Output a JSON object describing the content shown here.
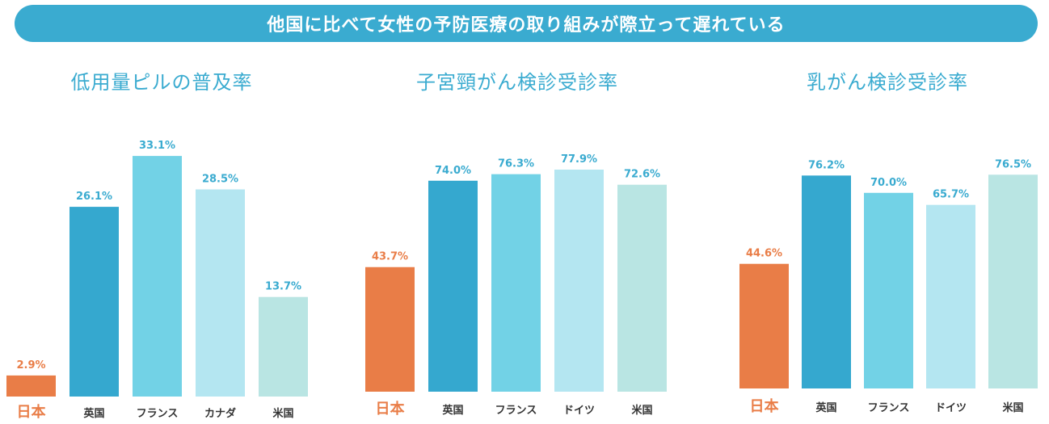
{
  "banner": {
    "title": "他国に比べて女性の予防医療の取り組みが際立って遅れている"
  },
  "colors": {
    "japan": "#e97d47",
    "uk": "#35a8cf",
    "france": "#72d2e6",
    "third": "#b4e6f1",
    "usa": "#b9e5e3",
    "label_blue": "#3aabd0",
    "label_japan": "#e97d47"
  },
  "chart_data": [
    {
      "type": "bar",
      "title": "低用量ピルの普及率",
      "categories": [
        "日本",
        "英国",
        "フランス",
        "カナダ",
        "米国"
      ],
      "values": [
        2.9,
        26.1,
        33.1,
        28.5,
        13.7
      ],
      "value_labels": [
        "2.9%",
        "26.1%",
        "33.1%",
        "28.5%",
        "13.7%"
      ],
      "unit": "%"
    },
    {
      "type": "bar",
      "title": "子宮頸がん検診受診率",
      "categories": [
        "日本",
        "英国",
        "フランス",
        "ドイツ",
        "米国"
      ],
      "values": [
        43.7,
        74.0,
        76.3,
        77.9,
        72.6
      ],
      "value_labels": [
        "43.7%",
        "74.0%",
        "76.3%",
        "77.9%",
        "72.6%"
      ],
      "unit": "%"
    },
    {
      "type": "bar",
      "title": "乳がん検診受診率",
      "categories": [
        "日本",
        "英国",
        "フランス",
        "ドイツ",
        "米国"
      ],
      "values": [
        44.6,
        76.2,
        70.0,
        65.7,
        76.5
      ],
      "value_labels": [
        "44.6%",
        "76.2%",
        "70.0%",
        "65.7%",
        "76.5%"
      ],
      "unit": "%"
    }
  ]
}
